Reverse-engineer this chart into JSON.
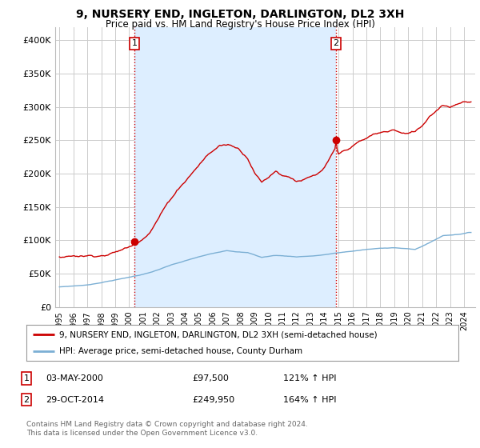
{
  "title": "9, NURSERY END, INGLETON, DARLINGTON, DL2 3XH",
  "subtitle": "Price paid vs. HM Land Registry's House Price Index (HPI)",
  "ylim": [
    0,
    420000
  ],
  "yticks": [
    0,
    50000,
    100000,
    150000,
    200000,
    250000,
    300000,
    350000,
    400000
  ],
  "ytick_labels": [
    "£0",
    "£50K",
    "£100K",
    "£150K",
    "£200K",
    "£250K",
    "£300K",
    "£350K",
    "£400K"
  ],
  "hpi_color": "#7bafd4",
  "price_color": "#cc0000",
  "vline_color": "#cc0000",
  "shade_color": "#ddeeff",
  "sale1_date_num": 2000.37,
  "sale1_price": 97500,
  "sale1_label": "1",
  "sale2_date_num": 2014.83,
  "sale2_price": 249950,
  "sale2_label": "2",
  "legend_line1": "9, NURSERY END, INGLETON, DARLINGTON, DL2 3XH (semi-detached house)",
  "legend_line2": "HPI: Average price, semi-detached house, County Durham",
  "footnote": "Contains HM Land Registry data © Crown copyright and database right 2024.\nThis data is licensed under the Open Government Licence v3.0.",
  "bg_color": "#ffffff",
  "grid_color": "#cccccc",
  "xtick_years": [
    1995,
    1996,
    1997,
    1998,
    1999,
    2000,
    2001,
    2002,
    2003,
    2004,
    2005,
    2006,
    2007,
    2008,
    2009,
    2010,
    2011,
    2012,
    2013,
    2014,
    2015,
    2016,
    2017,
    2018,
    2019,
    2020,
    2021,
    2022,
    2023,
    2024
  ]
}
